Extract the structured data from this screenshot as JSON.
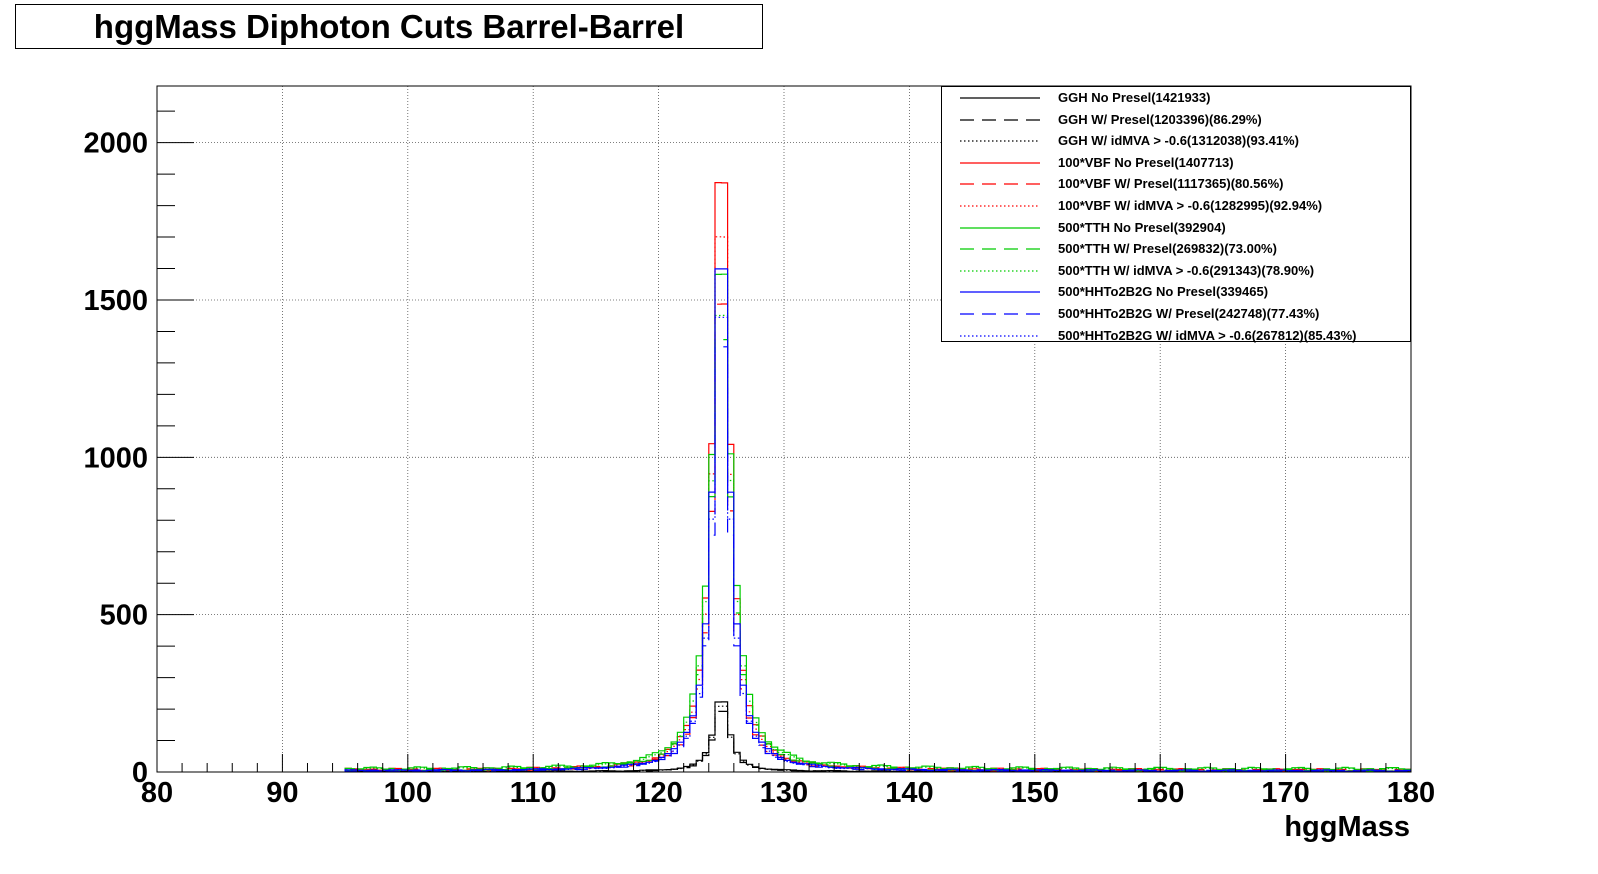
{
  "chart_data": {
    "type": "line",
    "title": "hggMass Diphoton Cuts Barrel-Barrel",
    "xlabel": "hggMass",
    "ylabel": "",
    "xlim": [
      80,
      180
    ],
    "ylim": [
      0,
      2180
    ],
    "x_ticks": [
      80,
      90,
      100,
      110,
      120,
      130,
      140,
      150,
      160,
      170,
      180
    ],
    "y_ticks": [
      0,
      500,
      1000,
      1500,
      2000
    ],
    "grid": true,
    "legend_position": "top-right",
    "histogram_range": [
      95,
      180
    ],
    "bin_width": 0.5,
    "series": [
      {
        "name": "GGH No Presel(1421933)",
        "color": "#000000",
        "dash": "solid",
        "peak": 250,
        "width": 0.7,
        "base": 3
      },
      {
        "name": "GGH W/ Presel(1203396)(86.29%)",
        "color": "#000000",
        "dash": "dashed",
        "peak": 215,
        "width": 0.7,
        "base": 2
      },
      {
        "name": "GGH W/ idMVA > -0.6(1312038)(93.41%)",
        "color": "#000000",
        "dash": "dotted",
        "peak": 235,
        "width": 0.7,
        "base": 2
      },
      {
        "name": "100*VBF No Presel(1407713)",
        "color": "#ff0000",
        "dash": "solid",
        "peak": 2070,
        "width": 0.75,
        "base": 10
      },
      {
        "name": "100*VBF W/ Presel(1117365)(80.56%)",
        "color": "#ff0000",
        "dash": "dashed",
        "peak": 1650,
        "width": 0.75,
        "base": 8
      },
      {
        "name": "100*VBF W/ idMVA > -0.6(1282995)(92.94%)",
        "color": "#ff0000",
        "dash": "dotted",
        "peak": 1880,
        "width": 0.75,
        "base": 9
      },
      {
        "name": "500*TTH No Presel(392904)",
        "color": "#00cc00",
        "dash": "solid",
        "peak": 1700,
        "width": 0.9,
        "base": 14
      },
      {
        "name": "500*TTH W/ Presel(269832)(73.00%)",
        "color": "#00cc00",
        "dash": "dashed",
        "peak": 1470,
        "width": 0.9,
        "base": 10
      },
      {
        "name": "500*TTH W/ idMVA > -0.6(291343)(78.90%)",
        "color": "#00cc00",
        "dash": "dotted",
        "peak": 1560,
        "width": 0.9,
        "base": 11
      },
      {
        "name": "500*HHTo2B2G No Presel(339465)",
        "color": "#0000ff",
        "dash": "solid",
        "peak": 1770,
        "width": 0.75,
        "base": 6
      },
      {
        "name": "500*HHTo2B2G W/ Presel(242748)(77.43%)",
        "color": "#0000ff",
        "dash": "dashed",
        "peak": 1500,
        "width": 0.75,
        "base": 5
      },
      {
        "name": "500*HHTo2B2G W/ idMVA > -0.6(267812)(85.43%)",
        "color": "#0000ff",
        "dash": "dotted",
        "peak": 1600,
        "width": 0.75,
        "base": 5
      }
    ]
  }
}
